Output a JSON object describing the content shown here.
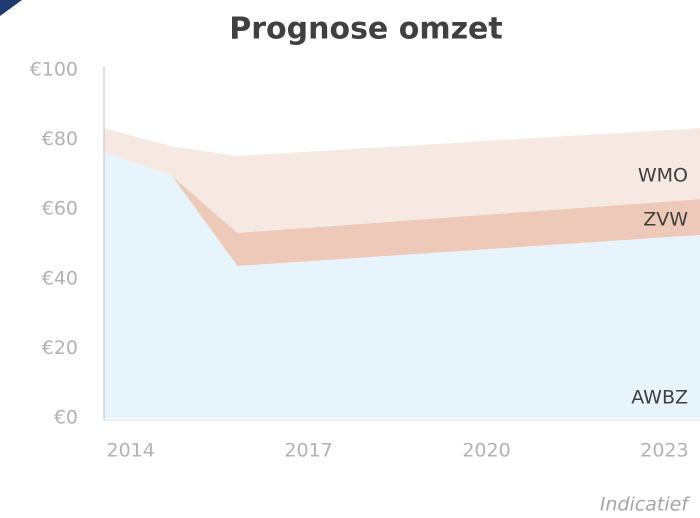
{
  "chart_data": {
    "type": "stacked_area",
    "title": "Prognose omzet",
    "x": [
      2013.55,
      2014.7,
      2015.8,
      2023.6
    ],
    "series": [
      {
        "name": "AWBZ",
        "color": "#e8f4fb",
        "values": [
          76.4,
          69.5,
          43.7,
          52.6
        ]
      },
      {
        "name": "ZVW",
        "color": "#ecc9b8",
        "values": [
          0,
          0,
          9.5,
          10.3
        ]
      },
      {
        "name": "WMO",
        "color": "#f6e9e3",
        "values": [
          6.9,
          8.5,
          22.1,
          20.4
        ]
      }
    ],
    "xlim": [
      2013.55,
      2023.6
    ],
    "xticks": [
      2014,
      2017,
      2020,
      2023
    ],
    "ylim": [
      0,
      100
    ],
    "yticks": [
      {
        "value": 0,
        "label": "€0"
      },
      {
        "value": 20,
        "label": "€20"
      },
      {
        "value": 40,
        "label": "€40"
      },
      {
        "value": 60,
        "label": "€60"
      },
      {
        "value": 80,
        "label": "€80"
      },
      {
        "value": 100,
        "label": "€100"
      }
    ],
    "grid": false,
    "annotation": "Indicatief"
  }
}
